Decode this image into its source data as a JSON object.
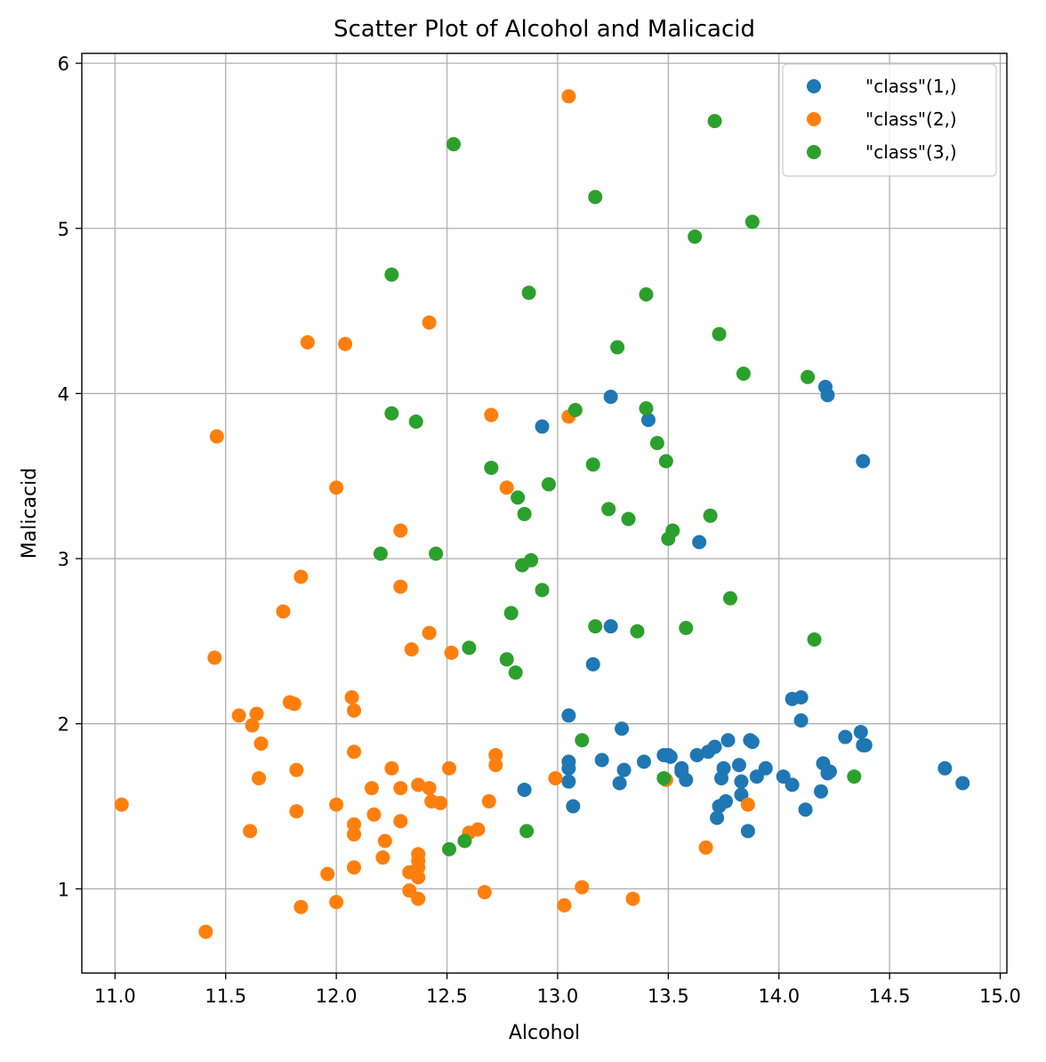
{
  "chart_data": {
    "type": "scatter",
    "title": "Scatter Plot of Alcohol and Malicacid",
    "xlabel": "Alcohol",
    "ylabel": "Malicacid",
    "xlim": [
      10.85,
      15.03
    ],
    "ylim": [
      0.49,
      6.06
    ],
    "xticks": [
      11.0,
      11.5,
      12.0,
      12.5,
      13.0,
      13.5,
      14.0,
      14.5,
      15.0
    ],
    "xtick_labels": [
      "11.0",
      "11.5",
      "12.0",
      "12.5",
      "13.0",
      "13.5",
      "14.0",
      "14.5",
      "15.0"
    ],
    "yticks": [
      1,
      2,
      3,
      4,
      5,
      6
    ],
    "ytick_labels": [
      "1",
      "2",
      "3",
      "4",
      "5",
      "6"
    ],
    "grid": true,
    "legend_position": "top-right",
    "series": [
      {
        "name": "\"class\"(1,)",
        "color": "#1f77b4",
        "points": [
          [
            14.23,
            1.71
          ],
          [
            13.2,
            1.78
          ],
          [
            13.16,
            2.36
          ],
          [
            14.37,
            1.95
          ],
          [
            13.24,
            2.59
          ],
          [
            14.2,
            1.76
          ],
          [
            14.39,
            1.87
          ],
          [
            14.06,
            2.15
          ],
          [
            14.83,
            1.64
          ],
          [
            13.86,
            1.35
          ],
          [
            14.1,
            2.16
          ],
          [
            14.12,
            1.48
          ],
          [
            13.75,
            1.73
          ],
          [
            14.75,
            1.73
          ],
          [
            14.38,
            1.87
          ],
          [
            13.63,
            1.81
          ],
          [
            14.3,
            1.92
          ],
          [
            13.83,
            1.57
          ],
          [
            14.19,
            1.59
          ],
          [
            13.64,
            3.1
          ],
          [
            14.06,
            1.63
          ],
          [
            12.93,
            3.8
          ],
          [
            13.71,
            1.86
          ],
          [
            12.85,
            1.6
          ],
          [
            13.5,
            1.81
          ],
          [
            13.05,
            2.05
          ],
          [
            13.39,
            1.77
          ],
          [
            13.3,
            1.72
          ],
          [
            13.87,
            1.9
          ],
          [
            14.02,
            1.68
          ],
          [
            13.73,
            1.5
          ],
          [
            13.58,
            1.66
          ],
          [
            13.68,
            1.83
          ],
          [
            13.76,
            1.53
          ],
          [
            13.51,
            1.8
          ],
          [
            13.48,
            1.81
          ],
          [
            13.28,
            1.64
          ],
          [
            13.05,
            1.65
          ],
          [
            13.07,
            1.5
          ],
          [
            14.22,
            3.99
          ],
          [
            13.56,
            1.71
          ],
          [
            13.41,
            3.84
          ],
          [
            13.88,
            1.89
          ],
          [
            13.24,
            3.98
          ],
          [
            13.05,
            1.77
          ],
          [
            14.21,
            4.04
          ],
          [
            14.38,
            3.59
          ],
          [
            13.9,
            1.68
          ],
          [
            14.1,
            2.02
          ],
          [
            13.94,
            1.73
          ],
          [
            13.05,
            1.73
          ],
          [
            13.83,
            1.65
          ],
          [
            13.82,
            1.75
          ],
          [
            13.77,
            1.9
          ],
          [
            13.74,
            1.67
          ],
          [
            13.56,
            1.73
          ],
          [
            14.22,
            1.7
          ],
          [
            13.29,
            1.97
          ],
          [
            13.72,
            1.43
          ]
        ]
      },
      {
        "name": "\"class\"(2,)",
        "color": "#ff7f0e",
        "points": [
          [
            12.37,
            0.94
          ],
          [
            12.33,
            1.1
          ],
          [
            12.64,
            1.36
          ],
          [
            13.67,
            1.25
          ],
          [
            12.37,
            1.13
          ],
          [
            12.17,
            1.45
          ],
          [
            12.37,
            1.21
          ],
          [
            13.11,
            1.01
          ],
          [
            12.37,
            1.17
          ],
          [
            13.34,
            0.94
          ],
          [
            12.21,
            1.19
          ],
          [
            12.29,
            1.61
          ],
          [
            13.86,
            1.51
          ],
          [
            13.49,
            1.66
          ],
          [
            12.99,
            1.67
          ],
          [
            11.96,
            1.09
          ],
          [
            11.66,
            1.88
          ],
          [
            13.03,
            0.9
          ],
          [
            11.84,
            2.89
          ],
          [
            12.33,
            0.99
          ],
          [
            12.7,
            3.87
          ],
          [
            12.0,
            0.92
          ],
          [
            12.72,
            1.81
          ],
          [
            12.08,
            1.13
          ],
          [
            13.05,
            3.86
          ],
          [
            11.84,
            0.89
          ],
          [
            12.67,
            0.98
          ],
          [
            12.16,
            1.61
          ],
          [
            11.65,
            1.67
          ],
          [
            11.64,
            2.06
          ],
          [
            12.08,
            1.33
          ],
          [
            12.08,
            1.83
          ],
          [
            12.0,
            1.51
          ],
          [
            12.69,
            1.53
          ],
          [
            12.29,
            2.83
          ],
          [
            11.62,
            1.99
          ],
          [
            12.47,
            1.52
          ],
          [
            11.81,
            2.12
          ],
          [
            12.29,
            1.41
          ],
          [
            12.37,
            1.07
          ],
          [
            12.29,
            3.17
          ],
          [
            12.08,
            2.08
          ],
          [
            12.6,
            1.34
          ],
          [
            12.34,
            2.45
          ],
          [
            11.82,
            1.72
          ],
          [
            12.51,
            1.73
          ],
          [
            12.42,
            2.55
          ],
          [
            12.25,
            1.73
          ],
          [
            12.72,
            1.75
          ],
          [
            12.22,
            1.29
          ],
          [
            11.61,
            1.35
          ],
          [
            11.46,
            3.74
          ],
          [
            12.52,
            2.43
          ],
          [
            11.76,
            2.68
          ],
          [
            11.41,
            0.74
          ],
          [
            12.08,
            1.39
          ],
          [
            11.03,
            1.51
          ],
          [
            11.82,
            1.47
          ],
          [
            12.42,
            1.61
          ],
          [
            12.77,
            3.43
          ],
          [
            12.0,
            3.43
          ],
          [
            11.45,
            2.4
          ],
          [
            11.56,
            2.05
          ],
          [
            12.42,
            4.43
          ],
          [
            13.05,
            5.8
          ],
          [
            11.87,
            4.31
          ],
          [
            12.07,
            2.16
          ],
          [
            12.43,
            1.53
          ],
          [
            11.79,
            2.13
          ],
          [
            12.37,
            1.63
          ],
          [
            12.04,
            4.3
          ]
        ]
      },
      {
        "name": "\"class\"(3,)",
        "color": "#2ca02c",
        "points": [
          [
            12.86,
            1.35
          ],
          [
            12.88,
            2.99
          ],
          [
            12.81,
            2.31
          ],
          [
            12.7,
            3.55
          ],
          [
            12.51,
            1.24
          ],
          [
            12.6,
            2.46
          ],
          [
            12.25,
            4.72
          ],
          [
            12.53,
            5.51
          ],
          [
            13.49,
            3.59
          ],
          [
            12.84,
            2.96
          ],
          [
            12.93,
            2.81
          ],
          [
            13.36,
            2.56
          ],
          [
            13.52,
            3.17
          ],
          [
            13.62,
            4.95
          ],
          [
            12.25,
            3.88
          ],
          [
            13.16,
            3.57
          ],
          [
            13.88,
            5.04
          ],
          [
            12.87,
            4.61
          ],
          [
            13.32,
            3.24
          ],
          [
            13.08,
            3.9
          ],
          [
            13.5,
            3.12
          ],
          [
            12.79,
            2.67
          ],
          [
            13.11,
            1.9
          ],
          [
            13.23,
            3.3
          ],
          [
            12.58,
            1.29
          ],
          [
            13.17,
            5.19
          ],
          [
            13.84,
            4.12
          ],
          [
            12.45,
            3.03
          ],
          [
            14.34,
            1.68
          ],
          [
            13.48,
            1.67
          ],
          [
            12.36,
            3.83
          ],
          [
            13.69,
            3.26
          ],
          [
            12.85,
            3.27
          ],
          [
            12.96,
            3.45
          ],
          [
            13.78,
            2.76
          ],
          [
            13.73,
            4.36
          ],
          [
            13.45,
            3.7
          ],
          [
            12.82,
            3.37
          ],
          [
            13.58,
            2.58
          ],
          [
            13.4,
            4.6
          ],
          [
            12.2,
            3.03
          ],
          [
            12.77,
            2.39
          ],
          [
            14.16,
            2.51
          ],
          [
            13.71,
            5.65
          ],
          [
            13.4,
            3.91
          ],
          [
            13.27,
            4.28
          ],
          [
            13.17,
            2.59
          ],
          [
            14.13,
            4.1
          ]
        ]
      }
    ]
  }
}
